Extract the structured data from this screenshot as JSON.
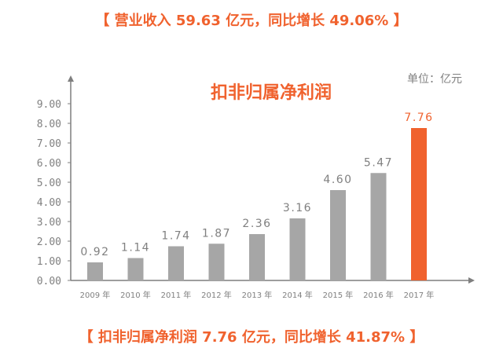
{
  "header": {
    "text": "【 营业收入 59.63 亿元，同比增长 49.06% 】"
  },
  "footer": {
    "text": "【 扣非归属净利润 7.76 亿元，同比增长 41.87% 】"
  },
  "chart_data": {
    "type": "bar",
    "title": "扣非归属净利润",
    "unit_label": "单位：亿元",
    "categories": [
      "2009 年",
      "2010 年",
      "2011 年",
      "2012 年",
      "2013 年",
      "2014 年",
      "2015 年",
      "2016 年",
      "2017 年"
    ],
    "values": [
      0.92,
      1.14,
      1.74,
      1.87,
      2.36,
      3.16,
      4.6,
      5.47,
      7.76
    ],
    "value_labels": [
      "0.92",
      "1.14",
      "1.74",
      "1.87",
      "2.36",
      "3.16",
      "4.60",
      "5.47",
      "7.76"
    ],
    "highlight_index": 8,
    "ylim": [
      0,
      9
    ],
    "yticks": [
      "0.00",
      "1.00",
      "2.00",
      "3.00",
      "4.00",
      "5.00",
      "6.00",
      "7.00",
      "8.00",
      "9.00"
    ],
    "grid": false,
    "colors": {
      "bar": "#a6a6a6",
      "highlight": "#f0622e",
      "title": "#f0622e",
      "axis": "#7f7f7f",
      "label": "#808080"
    }
  }
}
